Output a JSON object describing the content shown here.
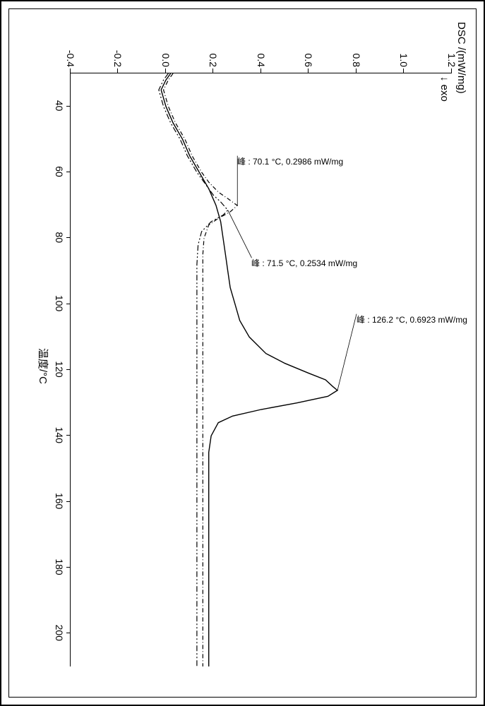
{
  "chart": {
    "type": "line",
    "y_axis_title": "DSC /(mW/mg)",
    "exo_label": "↓ exo",
    "x_axis_title": "温度/°C",
    "xlim": [
      30,
      210
    ],
    "ylim": [
      -0.4,
      1.2
    ],
    "xticks": [
      40,
      60,
      80,
      100,
      120,
      140,
      160,
      180,
      200
    ],
    "yticks": [
      -0.4,
      -0.2,
      0.0,
      0.2,
      0.4,
      0.6,
      0.8,
      1.0,
      1.2
    ],
    "background_color": "#ffffff",
    "axis_color": "#000000",
    "tick_fontsize": 14,
    "title_fontsize": 15,
    "anno_fontsize": 12,
    "series": [
      {
        "name": "curve-solid",
        "style": "solid",
        "color": "#000000",
        "points": [
          [
            30,
            0.02
          ],
          [
            32,
            0.0
          ],
          [
            35,
            -0.02
          ],
          [
            40,
            0.0
          ],
          [
            45,
            0.03
          ],
          [
            50,
            0.07
          ],
          [
            55,
            0.1
          ],
          [
            60,
            0.14
          ],
          [
            65,
            0.18
          ],
          [
            70,
            0.21
          ],
          [
            75,
            0.23
          ],
          [
            80,
            0.24
          ],
          [
            85,
            0.25
          ],
          [
            90,
            0.26
          ],
          [
            95,
            0.27
          ],
          [
            100,
            0.29
          ],
          [
            105,
            0.31
          ],
          [
            110,
            0.35
          ],
          [
            115,
            0.42
          ],
          [
            118,
            0.5
          ],
          [
            121,
            0.6
          ],
          [
            123,
            0.67
          ],
          [
            125,
            0.7
          ],
          [
            126.2,
            0.72
          ],
          [
            128,
            0.68
          ],
          [
            130,
            0.55
          ],
          [
            132,
            0.4
          ],
          [
            134,
            0.28
          ],
          [
            136,
            0.22
          ],
          [
            140,
            0.19
          ],
          [
            145,
            0.18
          ],
          [
            150,
            0.18
          ],
          [
            160,
            0.18
          ],
          [
            170,
            0.18
          ],
          [
            180,
            0.18
          ],
          [
            190,
            0.18
          ],
          [
            200,
            0.18
          ],
          [
            210,
            0.18
          ]
        ]
      },
      {
        "name": "curve-dashdot-a",
        "style": "dashdot",
        "color": "#000000",
        "points": [
          [
            30,
            0.03
          ],
          [
            32,
            0.01
          ],
          [
            35,
            -0.01
          ],
          [
            40,
            0.01
          ],
          [
            45,
            0.04
          ],
          [
            50,
            0.08
          ],
          [
            55,
            0.11
          ],
          [
            60,
            0.15
          ],
          [
            63,
            0.18
          ],
          [
            66,
            0.22
          ],
          [
            68,
            0.26
          ],
          [
            70.1,
            0.3
          ],
          [
            72,
            0.27
          ],
          [
            74,
            0.22
          ],
          [
            76,
            0.18
          ],
          [
            80,
            0.16
          ],
          [
            85,
            0.155
          ],
          [
            90,
            0.155
          ],
          [
            100,
            0.155
          ],
          [
            110,
            0.155
          ],
          [
            120,
            0.155
          ],
          [
            130,
            0.155
          ],
          [
            140,
            0.155
          ],
          [
            150,
            0.155
          ],
          [
            160,
            0.155
          ],
          [
            170,
            0.155
          ],
          [
            180,
            0.155
          ],
          [
            190,
            0.155
          ],
          [
            200,
            0.155
          ],
          [
            210,
            0.155
          ]
        ]
      },
      {
        "name": "curve-dashdot-b",
        "style": "dashdotdot",
        "color": "#000000",
        "points": [
          [
            30,
            0.01
          ],
          [
            32,
            -0.01
          ],
          [
            35,
            -0.03
          ],
          [
            40,
            -0.01
          ],
          [
            45,
            0.02
          ],
          [
            50,
            0.06
          ],
          [
            55,
            0.09
          ],
          [
            60,
            0.13
          ],
          [
            64,
            0.17
          ],
          [
            67,
            0.2
          ],
          [
            69,
            0.23
          ],
          [
            71.5,
            0.26
          ],
          [
            73,
            0.24
          ],
          [
            75,
            0.19
          ],
          [
            78,
            0.15
          ],
          [
            82,
            0.135
          ],
          [
            88,
            0.13
          ],
          [
            95,
            0.13
          ],
          [
            105,
            0.13
          ],
          [
            115,
            0.13
          ],
          [
            125,
            0.13
          ],
          [
            135,
            0.13
          ],
          [
            145,
            0.13
          ],
          [
            155,
            0.13
          ],
          [
            165,
            0.13
          ],
          [
            175,
            0.13
          ],
          [
            185,
            0.13
          ],
          [
            195,
            0.13
          ],
          [
            205,
            0.13
          ],
          [
            210,
            0.13
          ]
        ]
      }
    ],
    "annotations": [
      {
        "text": "峰 : 126.2 °C, 0.6923 mW/mg",
        "pointer_to": [
          126.2,
          0.72
        ],
        "label_at": [
          103,
          0.8
        ]
      },
      {
        "text": "峰 : 71.5 °C, 0.2534 mW/mg",
        "pointer_to": [
          71.5,
          0.26
        ],
        "label_at": [
          86,
          0.36
        ]
      },
      {
        "text": "峰 : 70.1 °C, 0.2986 mW/mg",
        "pointer_to": [
          70.1,
          0.3
        ],
        "label_at": [
          55,
          0.3
        ]
      }
    ]
  }
}
